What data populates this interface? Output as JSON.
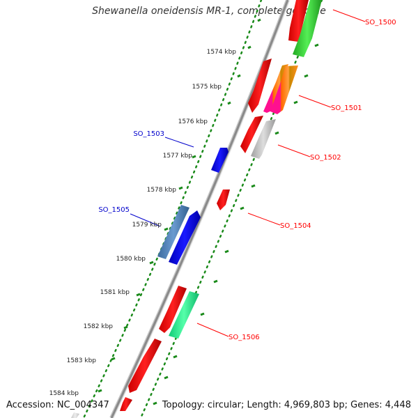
{
  "title": "Shewanella oneidensis MR-1, complete genome",
  "footer": {
    "accession": "Accession: NC_004347",
    "summary": "Topology: circular; Length: 4,969,803 bp; Genes: 4,448"
  },
  "scale_labels": [
    "1574 kbp",
    "1575 kbp",
    "1576 kbp",
    "1577 kbp",
    "1578 kbp",
    "1579 kbp",
    "1580 kbp",
    "1581 kbp",
    "1582 kbp",
    "1583 kbp",
    "1584 kbp"
  ],
  "gene_labels": [
    {
      "name": "SO_1500",
      "color": "#ff0000",
      "side": "right"
    },
    {
      "name": "SO_1501",
      "color": "#ff0000",
      "side": "right"
    },
    {
      "name": "SO_1502",
      "color": "#ff0000",
      "side": "right"
    },
    {
      "name": "SO_1503",
      "color": "#0000cc",
      "side": "left"
    },
    {
      "name": "SO_1504",
      "color": "#ff0000",
      "side": "right"
    },
    {
      "name": "SO_1505",
      "color": "#0000cc",
      "side": "left"
    },
    {
      "name": "SO_1506",
      "color": "#ff0000",
      "side": "right"
    }
  ],
  "colors": {
    "backbone": "#8a8a8a",
    "forward_cds": "#ff0000",
    "reverse_cds": "#0000ff",
    "gc_tick": "#1a8a1a",
    "steelblue": "#4a7ab0",
    "gray": "#b8b8b8",
    "green": "#33cc33",
    "seafoam": "#22dd88"
  }
}
